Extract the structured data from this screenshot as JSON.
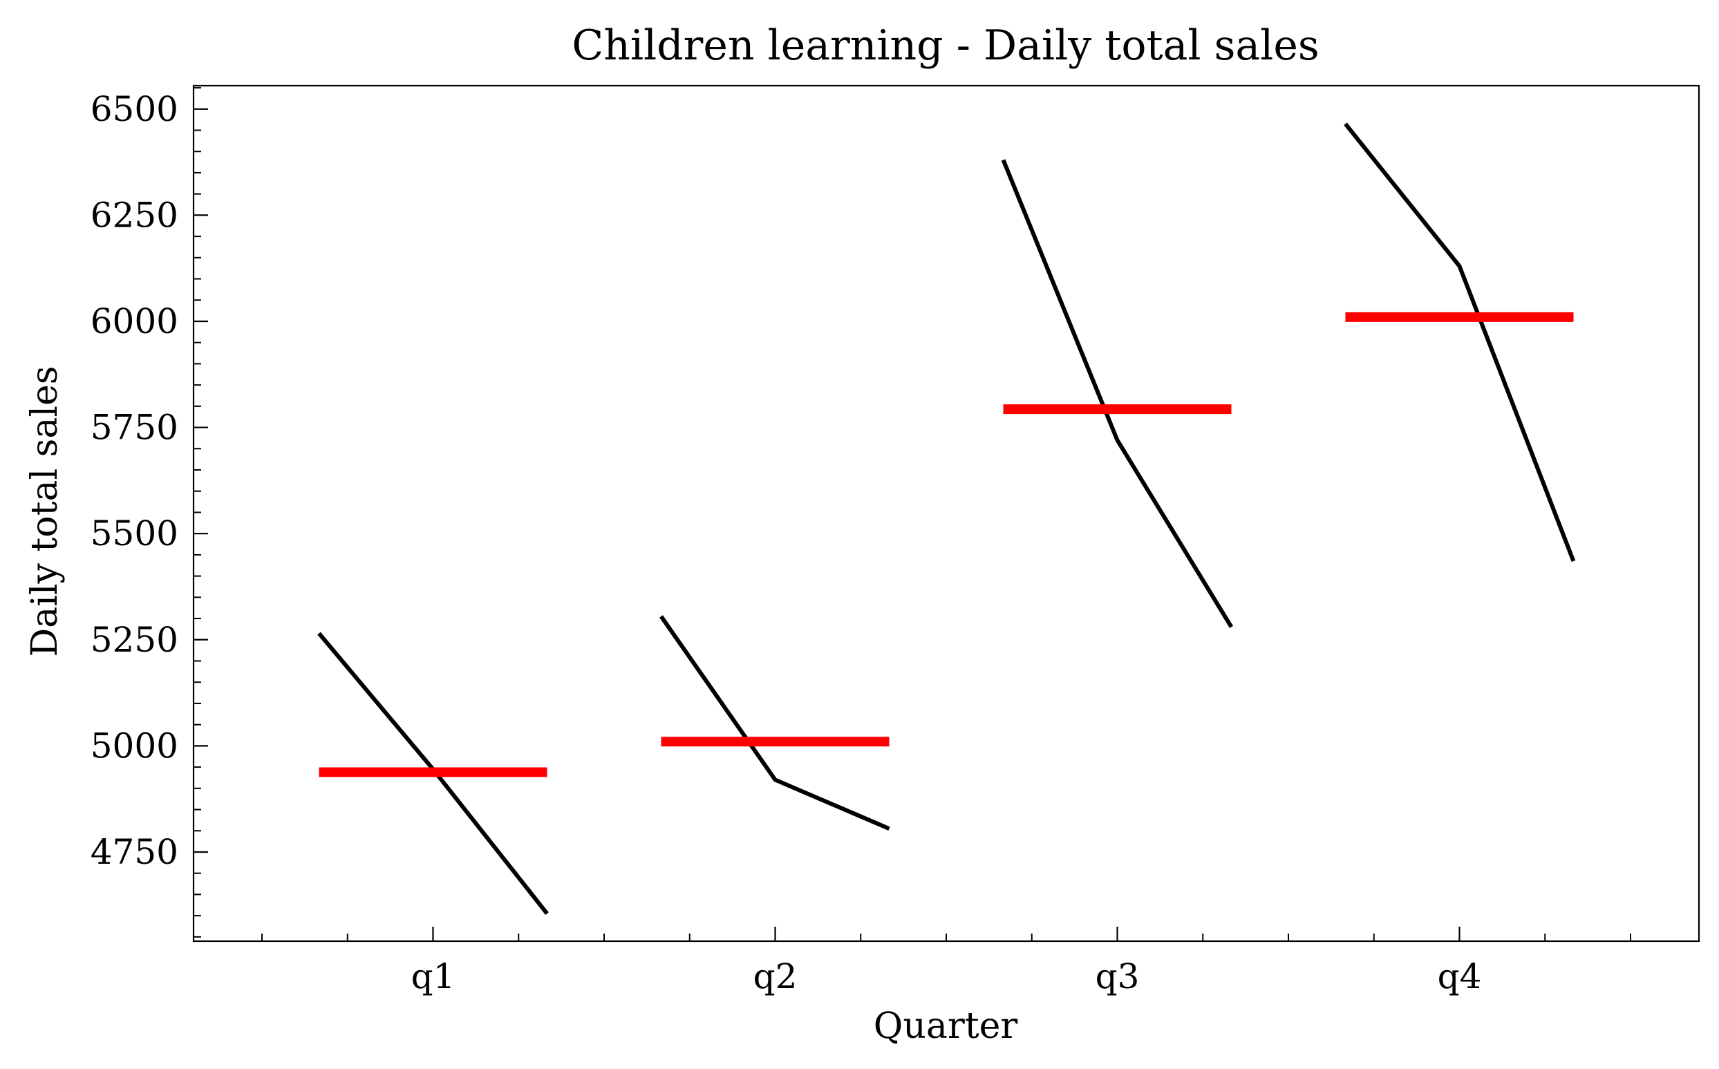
{
  "chart_data": {
    "type": "line",
    "title": "Children learning - Daily total sales",
    "xlabel": "Quarter",
    "ylabel": "Daily total sales",
    "categories": [
      "q1",
      "q2",
      "q3",
      "q4"
    ],
    "ylim": [
      4540,
      6555
    ],
    "yticks": [
      4750,
      5000,
      5250,
      5500,
      5750,
      6000,
      6250,
      6500
    ],
    "y_minor_step": 50,
    "x_minor_per_category": 4,
    "grid": false,
    "legend": "none",
    "series_color": "#000000",
    "mean_color": "#ff0000",
    "groups": [
      {
        "category": "q1",
        "values": [
          5265,
          4945,
          4605
        ],
        "mean": 4938
      },
      {
        "category": "q2",
        "values": [
          5305,
          4920,
          4805
        ],
        "mean": 5010
      },
      {
        "category": "q3",
        "values": [
          6380,
          5720,
          5280
        ],
        "mean": 5793
      },
      {
        "category": "q4",
        "values": [
          6465,
          6130,
          5435
        ],
        "mean": 6010
      }
    ]
  }
}
